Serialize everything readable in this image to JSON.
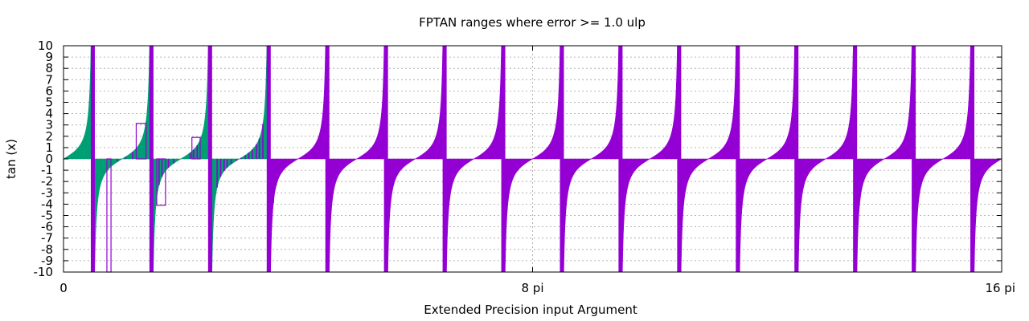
{
  "chart_data": {
    "type": "area",
    "title": "FPTAN ranges where error >= 1.0 ulp",
    "xlabel": "Extended Precision input Argument",
    "ylabel": "tan (x)",
    "xlim": [
      0,
      16
    ],
    "ylim": [
      -10,
      10
    ],
    "x_unit": "pi",
    "x_ticks": [
      {
        "value": 0,
        "label": "0"
      },
      {
        "value": 8,
        "label": "8 pi"
      },
      {
        "value": 16,
        "label": "16 pi"
      }
    ],
    "y_ticks": [
      "-10",
      "-9",
      "-8",
      "-7",
      "-6",
      "-5",
      "-4",
      "-3",
      "-2",
      "-1",
      "0",
      "1",
      "2",
      "3",
      "4",
      "5",
      "6",
      "7",
      "8",
      "9",
      "10"
    ],
    "grid": true,
    "legend": false,
    "periods": 16,
    "function": "tan(pi * x)",
    "green_fill_until": [
      3.5,
      4.1
    ],
    "tan_violet_fill_from": 4.1,
    "series": [
      {
        "color": "#009e73"
      },
      {
        "color": "#9400d3"
      }
    ],
    "outline_boxes": [
      {
        "x": [
          0.74,
          0.81
        ],
        "y": [
          -10,
          0
        ]
      },
      {
        "x": [
          1.24,
          1.41
        ],
        "y": [
          0,
          3.14
        ]
      },
      {
        "x": [
          1.59,
          1.74
        ],
        "y": [
          -4.1,
          0
        ]
      },
      {
        "x": [
          2.19,
          2.33
        ],
        "y": [
          0,
          1.9
        ]
      }
    ]
  }
}
